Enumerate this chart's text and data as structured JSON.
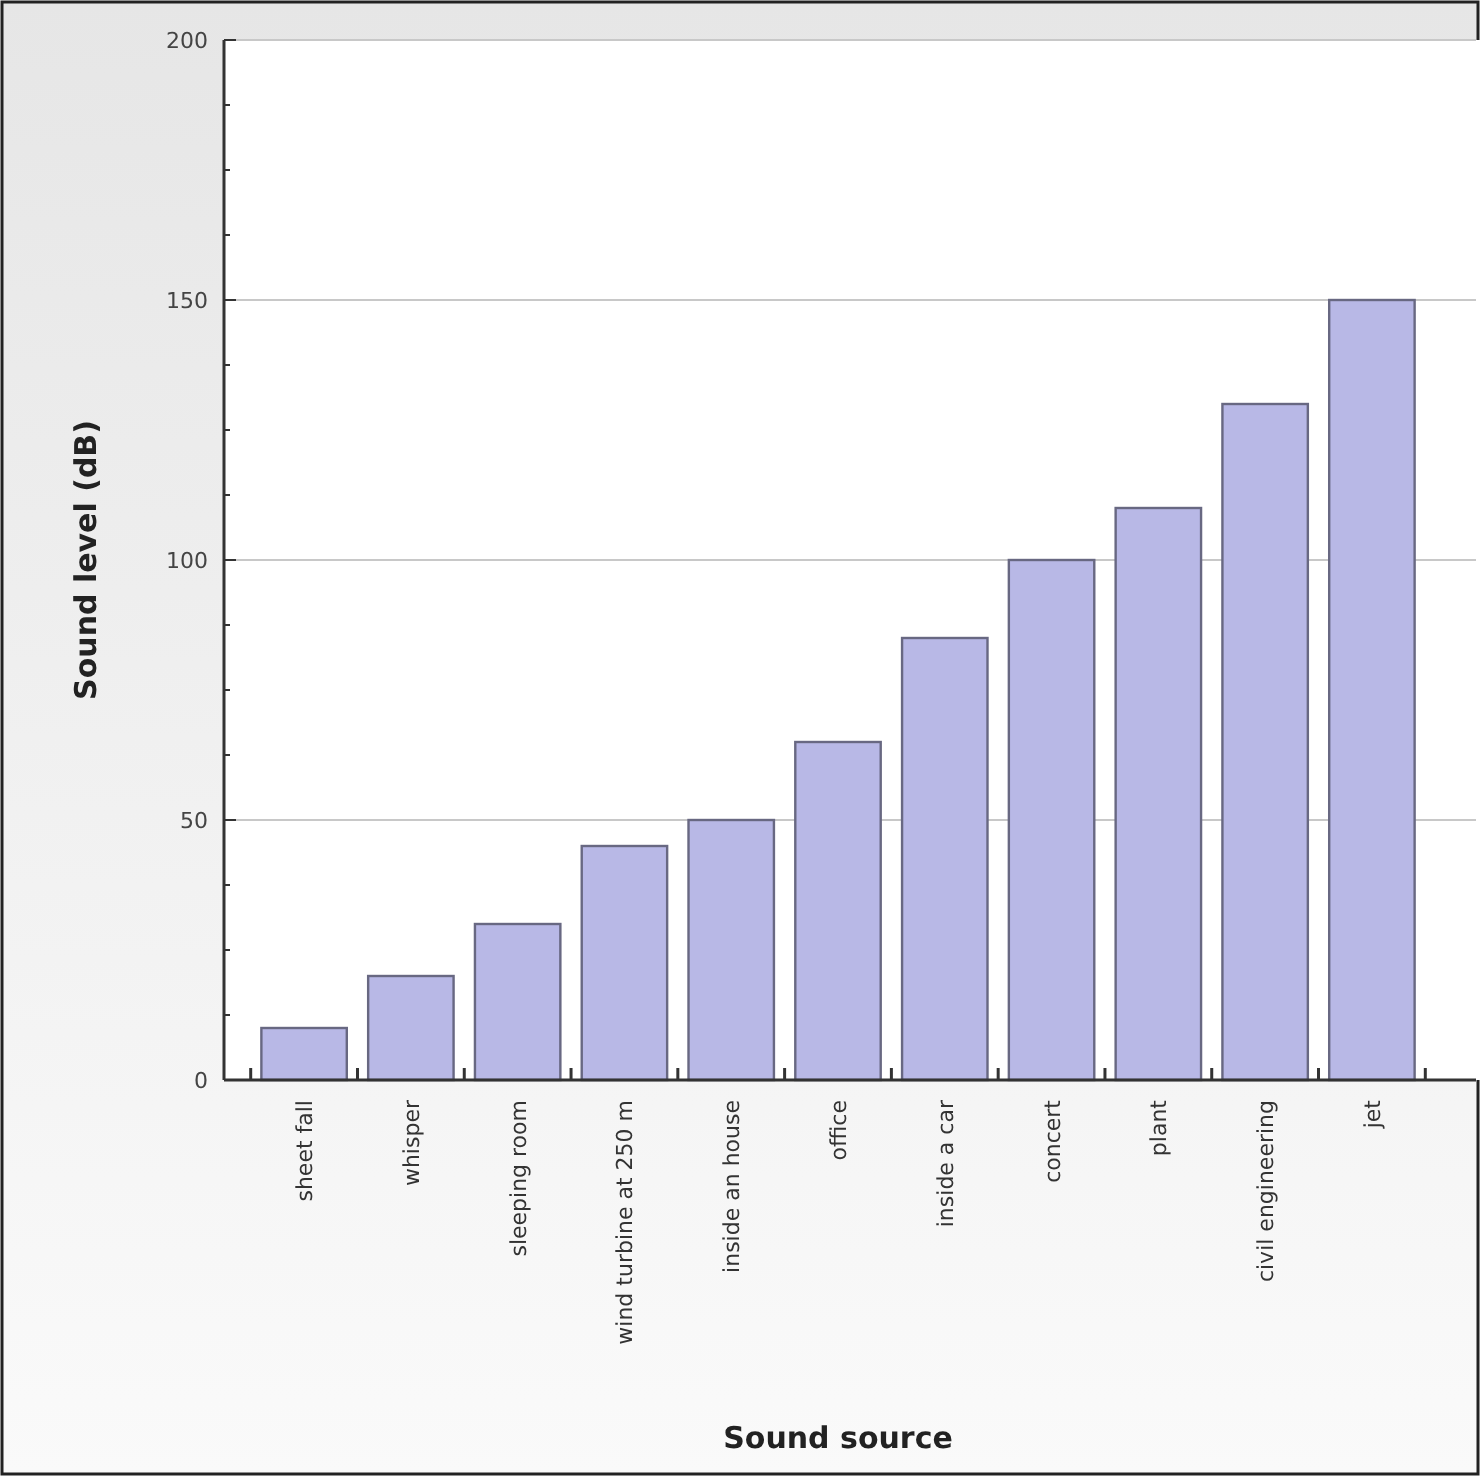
{
  "chart_data": {
    "type": "bar",
    "xlabel": "Sound source",
    "ylabel": "Sound level (dB)",
    "categories": [
      "sheet fall",
      "whisper",
      "sleeping room",
      "wind turbine at 250 m",
      "inside an house",
      "office",
      "inside a car",
      "concert",
      "plant",
      "civil engineering",
      "jet"
    ],
    "values": [
      10,
      20,
      30,
      45,
      50,
      65,
      85,
      100,
      110,
      130,
      150
    ],
    "color": "#b8b8e6",
    "ylim": [
      0,
      200
    ],
    "yticks": [
      0,
      {
        "value": 12.5,
        "label": null
      },
      {
        "value": 25,
        "label": null
      },
      {
        "value": 37.5,
        "label": null
      },
      50,
      {
        "value": 62.5,
        "label": null
      },
      {
        "value": 75,
        "label": null
      },
      {
        "value": 87.5,
        "label": null
      },
      100,
      {
        "value": 112.5,
        "label": null
      },
      {
        "value": 125,
        "label": null
      },
      {
        "value": 137.5,
        "label": null
      },
      150,
      {
        "value": 162.5,
        "label": null
      },
      {
        "value": 175,
        "label": null
      },
      {
        "value": 187.5,
        "label": null
      },
      200
    ],
    "grid": "y"
  }
}
